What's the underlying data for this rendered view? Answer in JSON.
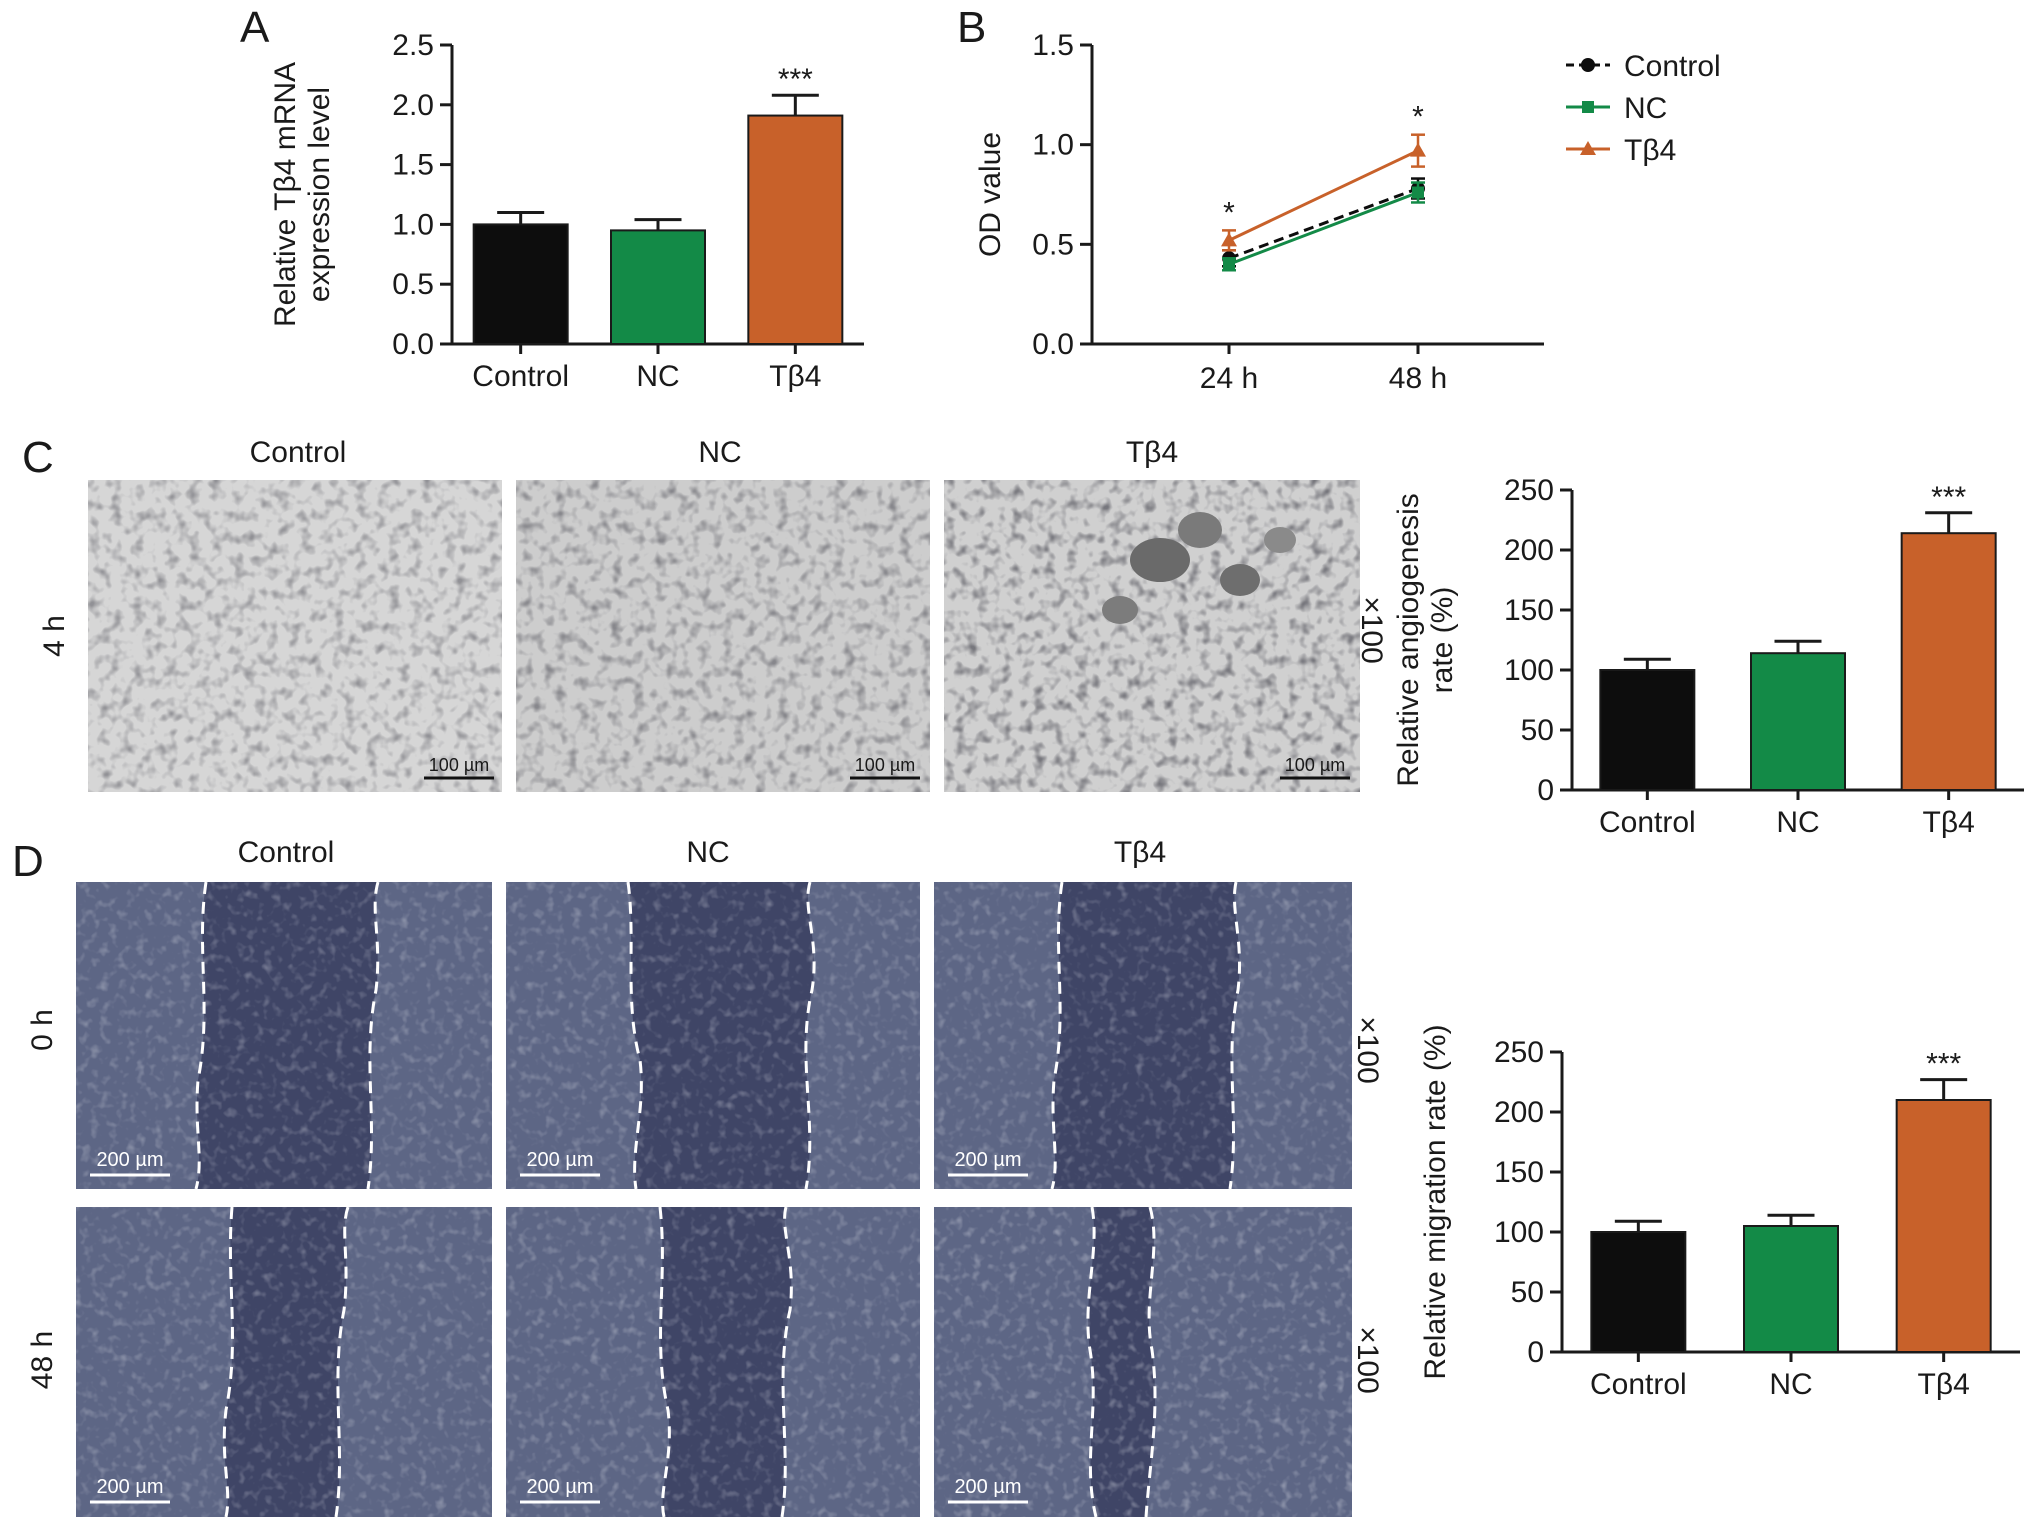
{
  "figure": {
    "panel_labels": {
      "a": "A",
      "b": "B",
      "c": "C",
      "d": "D"
    },
    "micrographs": {
      "c_columns": [
        "Control",
        "NC",
        "Tβ4"
      ],
      "c_row_label": "4 h",
      "c_scale_bar": "100 µm",
      "c_magnification": "×100",
      "d_columns": [
        "Control",
        "NC",
        "Tβ4"
      ],
      "d_rows": [
        "0 h",
        "48 h"
      ],
      "d_scale_bar": "200 µm",
      "d_magnification": "×100"
    }
  },
  "colors": {
    "control": "#0d0d0d",
    "nc": "#138a47",
    "tb4": "#c8612a",
    "tube_background": "#d2d2d2",
    "wound_background": "#3f4566"
  },
  "chart_data": [
    {
      "id": "A",
      "type": "bar",
      "categories": [
        "Control",
        "NC",
        "Tβ4"
      ],
      "values": [
        1.0,
        0.95,
        1.91
      ],
      "errors": [
        0.1,
        0.09,
        0.17
      ],
      "annotations": [
        "",
        "",
        "***"
      ],
      "ylabel_lines": [
        "Relative Tβ4 mRNA",
        "expression level"
      ],
      "ylim": [
        0,
        2.5
      ],
      "yticks": [
        "0.0",
        "0.5",
        "1.0",
        "1.5",
        "2.0",
        "2.5"
      ],
      "grid": false
    },
    {
      "id": "B",
      "type": "line",
      "x": [
        "24 h",
        "48 h"
      ],
      "ylabel": "OD value",
      "ylim": [
        0,
        1.5
      ],
      "yticks": [
        "0.0",
        "0.5",
        "1.0",
        "1.5"
      ],
      "series": [
        {
          "name": "Control",
          "values": [
            0.43,
            0.78
          ],
          "errors": [
            0.04,
            0.05
          ],
          "marker": "circle",
          "dashed": true
        },
        {
          "name": "NC",
          "values": [
            0.4,
            0.76
          ],
          "errors": [
            0.03,
            0.05
          ],
          "marker": "square",
          "dashed": false
        },
        {
          "name": "Tβ4",
          "values": [
            0.52,
            0.97
          ],
          "errors": [
            0.05,
            0.08
          ],
          "marker": "triangle",
          "dashed": false
        }
      ],
      "annotations": [
        "*",
        "*"
      ],
      "legend": "top-right",
      "grid": false
    },
    {
      "id": "C",
      "type": "bar",
      "categories": [
        "Control",
        "NC",
        "Tβ4"
      ],
      "values": [
        100,
        114,
        214
      ],
      "errors": [
        9,
        10,
        17
      ],
      "annotations": [
        "",
        "",
        "***"
      ],
      "ylabel_lines": [
        "Relative angiogenesis",
        "rate (%)"
      ],
      "ylim": [
        0,
        250
      ],
      "yticks": [
        "0",
        "50",
        "100",
        "150",
        "200",
        "250"
      ],
      "grid": false
    },
    {
      "id": "D",
      "type": "bar",
      "categories": [
        "Control",
        "NC",
        "Tβ4"
      ],
      "values": [
        100,
        105,
        210
      ],
      "errors": [
        9,
        9,
        17
      ],
      "annotations": [
        "",
        "",
        "***"
      ],
      "ylabel_lines": [
        "Relative migration rate (%)"
      ],
      "ylim": [
        0,
        250
      ],
      "yticks": [
        "0",
        "50",
        "100",
        "150",
        "200",
        "250"
      ],
      "grid": false
    }
  ]
}
